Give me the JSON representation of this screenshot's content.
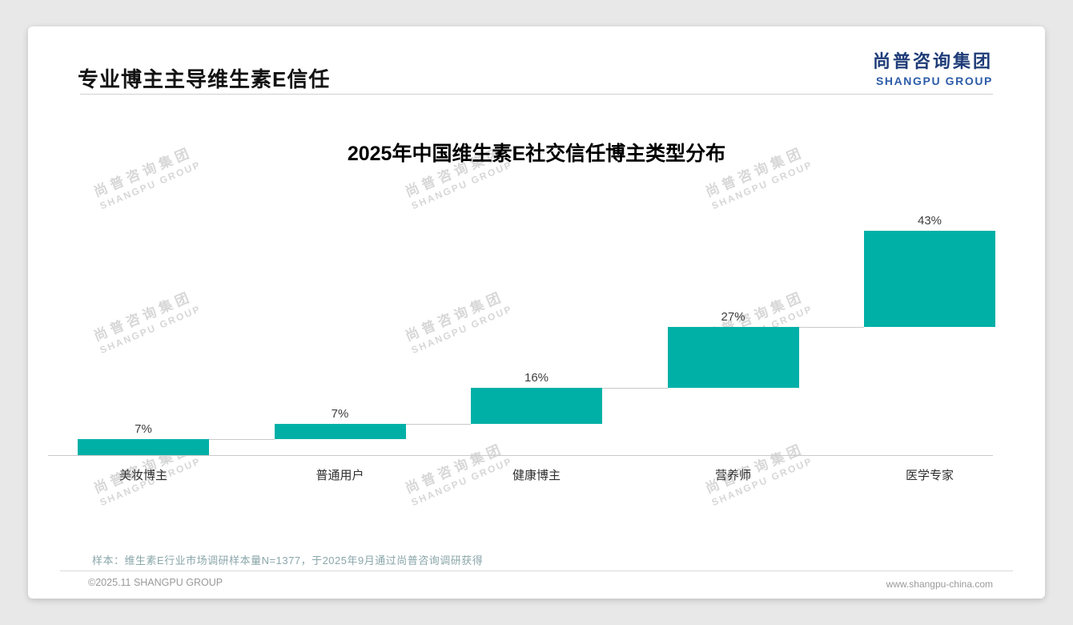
{
  "page": {
    "title": "专业博主主导维生素E信任",
    "logo": {
      "cn": "尚普咨询集团",
      "en": "SHANGPU GROUP"
    },
    "watermark": {
      "cn": "尚普咨询集团",
      "en": "SHANGPU GROUP"
    },
    "note": "样本：维生素E行业市场调研样本量N=1377，于2025年9月通过尚普咨询调研获得",
    "footer": {
      "left": "©2025.11 SHANGPU GROUP",
      "right": "www.shangpu-china.com"
    }
  },
  "chart_data": {
    "type": "bar",
    "subtype": "waterfall-cumulative",
    "title": "2025年中国维生素E社交信任博主类型分布",
    "categories": [
      "美妆博主",
      "普通用户",
      "健康博主",
      "营养师",
      "医学专家"
    ],
    "values": [
      7,
      7,
      16,
      27,
      43
    ],
    "value_labels": [
      "7%",
      "7%",
      "16%",
      "27%",
      "43%"
    ],
    "unit": "%",
    "ylim": [
      0,
      100
    ],
    "grid": false,
    "legend": "none",
    "bar_color": "#00b0a6",
    "axis_color": "#c9c9c9"
  }
}
